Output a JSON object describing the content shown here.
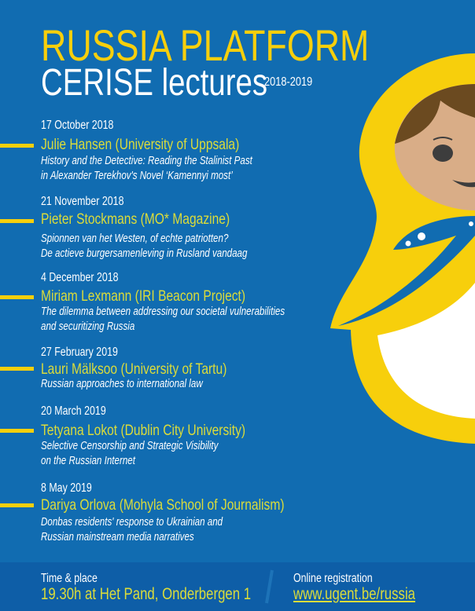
{
  "header": {
    "title": "RUSSIA PLATFORM",
    "subtitle": "CERISE lectures",
    "years": "2018-2019"
  },
  "lectures": [
    {
      "date": "17 October 2018",
      "speaker": "Julie Hansen (University of Uppsala)",
      "desc": [
        "History and the Detective: Reading the Stalinist Past",
        "in Alexander Terekhov's Novel ‘Kamennyi most’"
      ]
    },
    {
      "date": "21 November 2018",
      "speaker": "Pieter Stockmans (MO* Magazine)",
      "desc": [
        "Spionnen van het Westen, of echte patriotten?",
        "De actieve burgersamenleving in Rusland vandaag"
      ]
    },
    {
      "date": "4 December 2018",
      "speaker": "Miriam Lexmann (IRI Beacon Project)",
      "desc": [
        "The dilemma between addressing our societal vulnerabilities",
        "and securitizing Russia"
      ]
    },
    {
      "date": "27 February 2019",
      "speaker": "Lauri Mälksoo (University of Tartu)",
      "desc": [
        "Russian approaches to international law"
      ]
    },
    {
      "date": "20 March 2019",
      "speaker": "Tetyana Lokot (Dublin City University)",
      "desc": [
        "Selective Censorship and Strategic Visibility",
        "on the Russian Internet"
      ]
    },
    {
      "date": "8 May 2019",
      "speaker": "Dariya Orlova (Mohyla School of Journalism)",
      "desc": [
        "Donbas residents' response to Ukrainian and",
        "Russian mainstream media narratives"
      ]
    }
  ],
  "footer": {
    "time_label": "Time & place",
    "time_value": "19.30h at Het Pand, Onderbergen 1",
    "reg_label": "Online registration",
    "reg_link": "www.ugent.be/russia"
  },
  "colors": {
    "background": "#116cb1",
    "yellow": "#f7cf0c",
    "speaker": "#dbdc3a",
    "footer": "#0e5ea7"
  },
  "illustration": "matryoshka-doll"
}
